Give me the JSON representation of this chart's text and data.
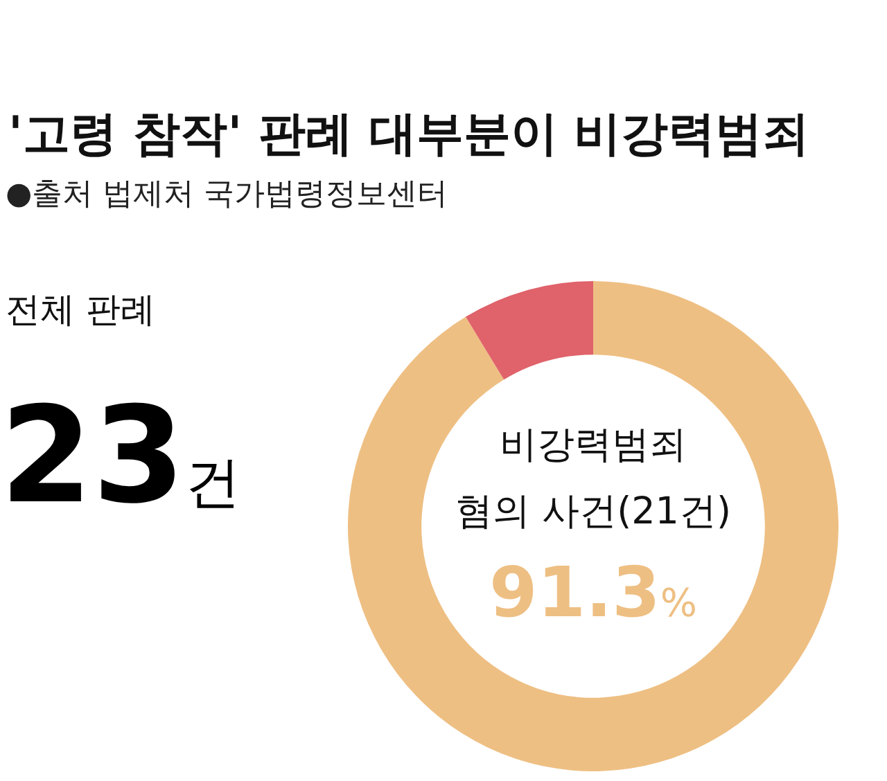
{
  "chart_data": {
    "type": "donut",
    "title": "'고령 참작' 판례 대부분이 비강력범죄",
    "subtitle": "●출처 법제처 국가법령정보센터",
    "categories": [
      "비강력범죄 혐의 사건(21건)",
      null
    ],
    "values": [
      91.3,
      8.7
    ],
    "colors": [
      "#eebf83",
      "#e0626a"
    ],
    "value_labels": [
      "91.3%",
      null
    ],
    "annotations": [
      "전체 판례",
      "23건"
    ]
  }
}
